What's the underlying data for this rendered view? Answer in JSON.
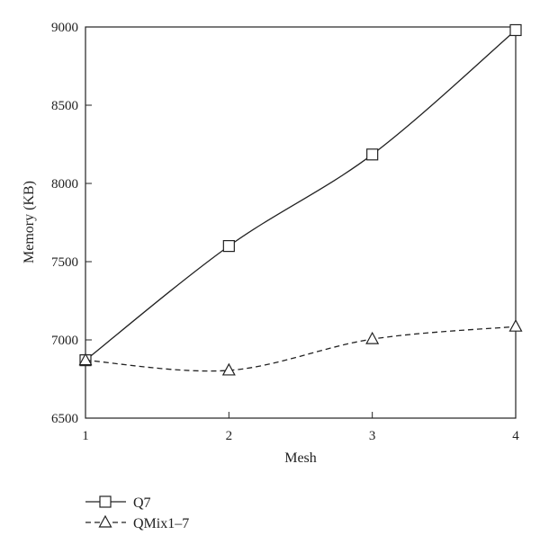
{
  "chart_data": {
    "type": "line",
    "title": "",
    "xlabel": "Mesh",
    "ylabel": "Memory (KB)",
    "x": [
      1,
      2,
      3,
      4
    ],
    "xlim": [
      1,
      4
    ],
    "ylim": [
      6500,
      9000
    ],
    "xticks": [
      "1",
      "2",
      "3",
      "4"
    ],
    "yticks": [
      "6500",
      "7000",
      "7500",
      "8000",
      "8500",
      "9000"
    ],
    "grid": false,
    "legend_placement": "bottom-left",
    "series": [
      {
        "name": "Q7",
        "values": [
          6870,
          7600,
          8185,
          8980
        ],
        "marker": "square",
        "line_style": "solid",
        "color": "#222222"
      },
      {
        "name": "QMix1–7",
        "values": [
          6870,
          6805,
          7005,
          7085
        ],
        "marker": "triangle",
        "line_style": "dashed",
        "color": "#222222"
      }
    ]
  }
}
